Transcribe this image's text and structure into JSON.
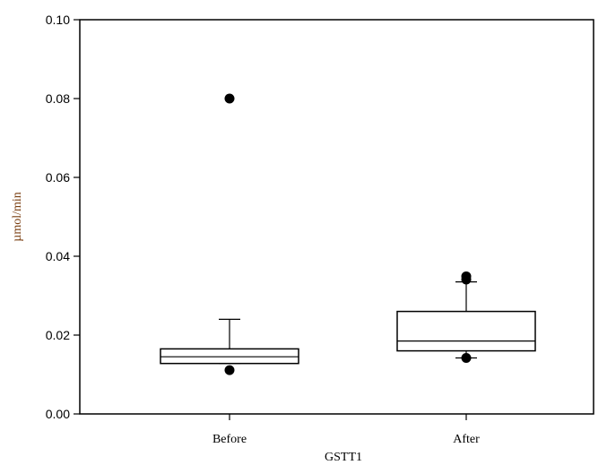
{
  "chart_data": {
    "type": "box",
    "title": "",
    "xlabel": "GSTT1",
    "ylabel": "µmol/min",
    "ylim": [
      0,
      0.1
    ],
    "yticks": [
      "0.00",
      "0.02",
      "0.04",
      "0.06",
      "0.08",
      "0.10"
    ],
    "grid": false,
    "categories": [
      "Before",
      "After"
    ],
    "boxes": [
      {
        "category": "Before",
        "whisker_low": 0.0128,
        "q1": 0.0128,
        "median": 0.0145,
        "q3": 0.0165,
        "whisker_high": 0.024,
        "outliers": [
          0.08,
          0.0111
        ]
      },
      {
        "category": "After",
        "whisker_low": 0.0142,
        "q1": 0.016,
        "median": 0.0185,
        "q3": 0.026,
        "whisker_high": 0.0335,
        "outliers": [
          0.0349,
          0.0341,
          0.0142
        ]
      }
    ]
  }
}
